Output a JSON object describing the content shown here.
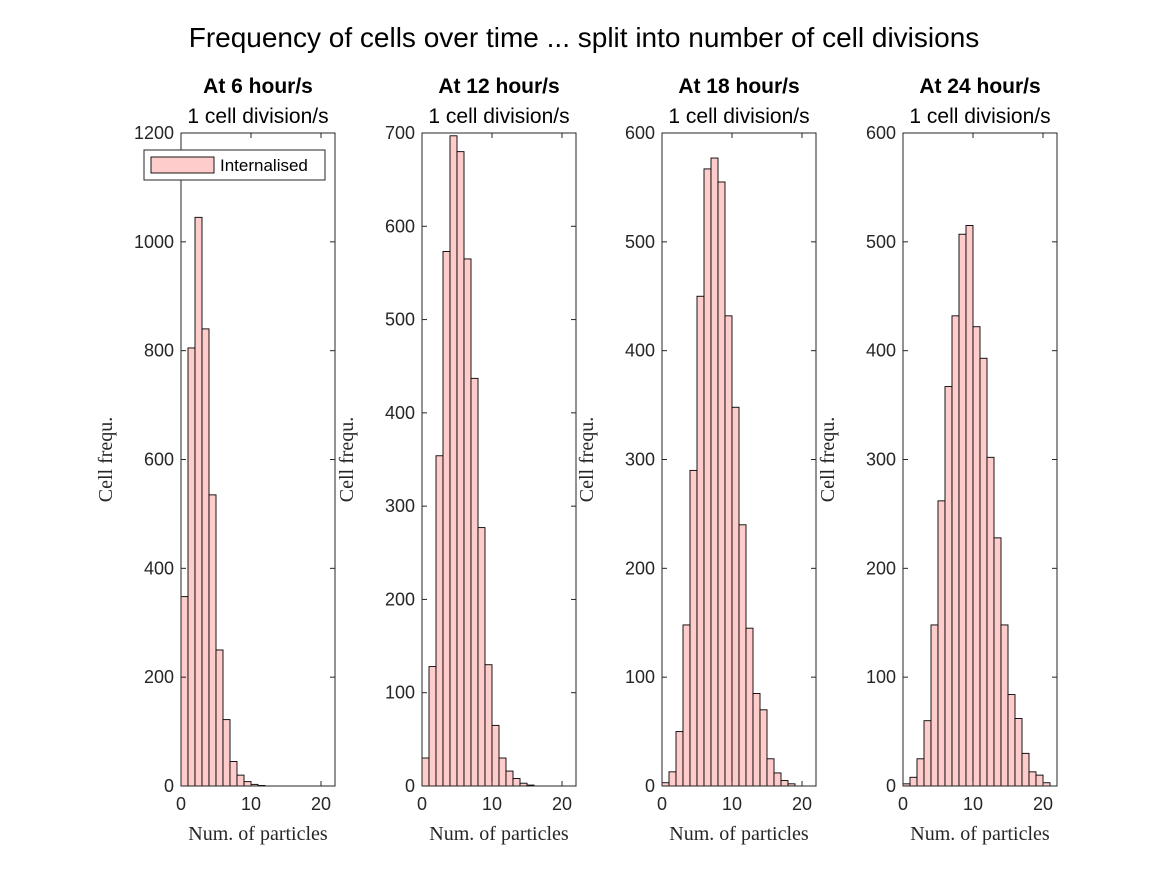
{
  "chart_data": {
    "title": "Frequency of cells over time ... split into number of cell divisions",
    "bar_color": "#FFCCCC",
    "edge_color": "#000000",
    "panels": [
      {
        "type": "bar",
        "title": "At 6 hour/s",
        "subtitle": "1 cell division/s",
        "xlabel": "Num. of particles",
        "ylabel": "Cell frequ.",
        "xlim": [
          0,
          22
        ],
        "ylim": [
          0,
          1200
        ],
        "xticks": [
          0,
          10,
          20
        ],
        "yticks": [
          0,
          200,
          400,
          600,
          800,
          1000,
          1200
        ],
        "bin_width": 1,
        "bin_start": 0,
        "values": [
          348,
          805,
          1045,
          840,
          535,
          250,
          122,
          45,
          20,
          8,
          3,
          1
        ],
        "legend": {
          "label": "Internalised",
          "location": "top-right"
        }
      },
      {
        "type": "bar",
        "title": "At 12 hour/s",
        "subtitle": "1 cell division/s",
        "xlabel": "Num. of particles",
        "ylabel": "Cell frequ.",
        "xlim": [
          0,
          22
        ],
        "ylim": [
          0,
          700
        ],
        "xticks": [
          0,
          10,
          20
        ],
        "yticks": [
          0,
          100,
          200,
          300,
          400,
          500,
          600,
          700
        ],
        "bin_width": 1,
        "bin_start": 0,
        "values": [
          30,
          128,
          354,
          573,
          697,
          680,
          565,
          437,
          277,
          130,
          65,
          30,
          16,
          8,
          3,
          1
        ]
      },
      {
        "type": "bar",
        "title": "At 18 hour/s",
        "subtitle": "1 cell division/s",
        "xlabel": "Num. of particles",
        "ylabel": "Cell frequ.",
        "xlim": [
          0,
          22
        ],
        "ylim": [
          0,
          600
        ],
        "xticks": [
          0,
          10,
          20
        ],
        "yticks": [
          0,
          100,
          200,
          300,
          400,
          500,
          600
        ],
        "bin_width": 1,
        "bin_start": 0,
        "values": [
          3,
          13,
          50,
          148,
          290,
          450,
          567,
          577,
          555,
          432,
          348,
          240,
          145,
          85,
          70,
          25,
          12,
          5,
          2
        ],
        "bar_start": 0
      },
      {
        "type": "bar",
        "title": "At 24 hour/s",
        "subtitle": "1 cell division/s",
        "xlabel": "Num. of particles",
        "ylabel": "Cell frequ.",
        "xlim": [
          0,
          22
        ],
        "ylim": [
          0,
          600
        ],
        "xticks": [
          0,
          10,
          20
        ],
        "yticks": [
          0,
          100,
          200,
          300,
          400,
          500,
          600
        ],
        "bin_width": 1,
        "bin_start": 0,
        "values": [
          2,
          8,
          25,
          60,
          148,
          262,
          367,
          432,
          507,
          515,
          422,
          393,
          302,
          228,
          148,
          84,
          62,
          30,
          13,
          10,
          3
        ]
      }
    ]
  }
}
